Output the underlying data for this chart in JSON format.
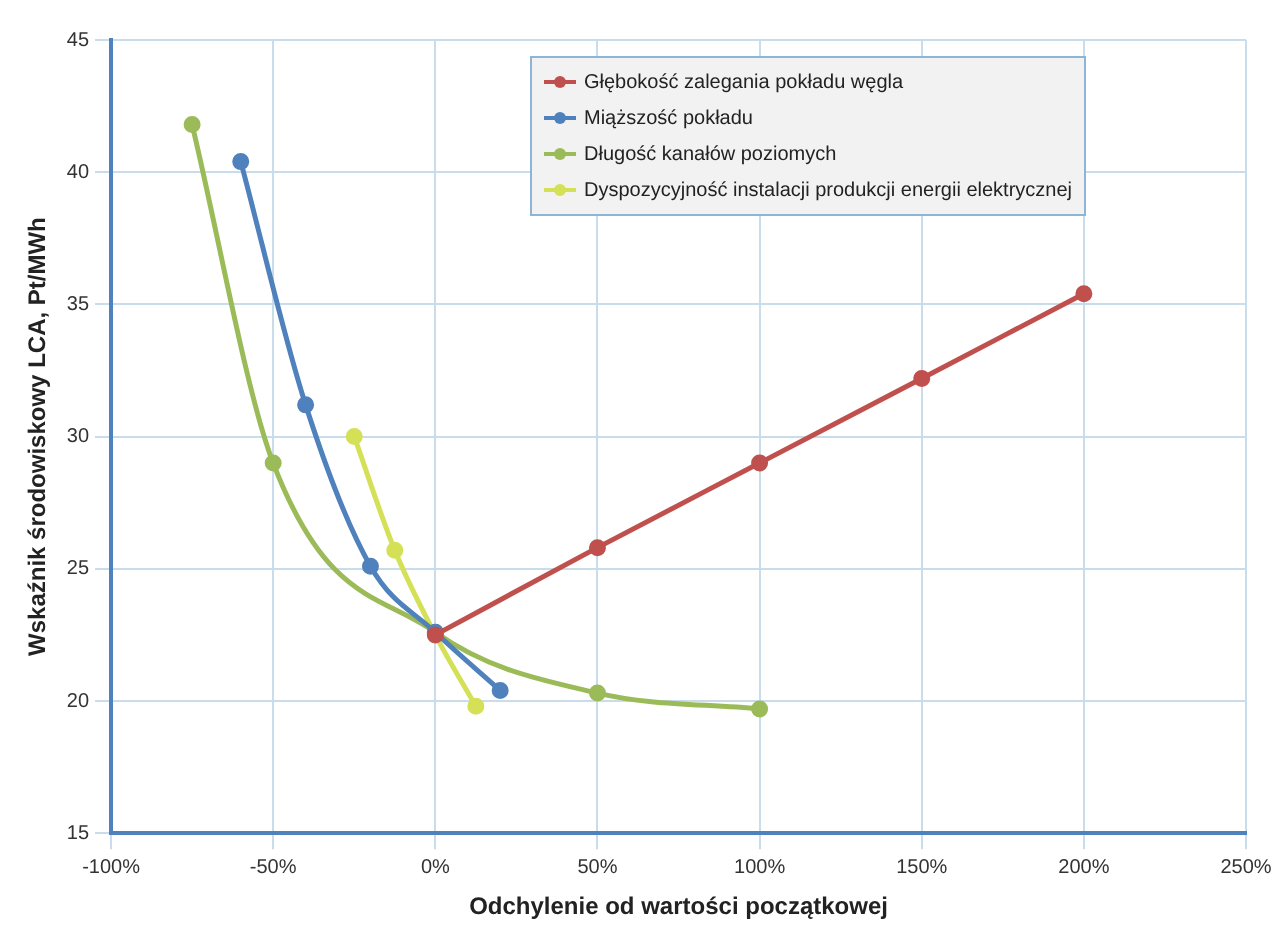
{
  "chart_data": {
    "type": "line",
    "xlabel": "Odchylenie od wartości początkowej",
    "ylabel": "Wskaźnik środowiskowy LCA, Pt/MWh",
    "xlim": [
      -100,
      250
    ],
    "xticks": [
      {
        "value": -100,
        "label": "-100%"
      },
      {
        "value": -50,
        "label": "-50%"
      },
      {
        "value": 0,
        "label": "0%"
      },
      {
        "value": 50,
        "label": "50%"
      },
      {
        "value": 100,
        "label": "100%"
      },
      {
        "value": 150,
        "label": "150%"
      },
      {
        "value": 200,
        "label": "200%"
      },
      {
        "value": 250,
        "label": "250%"
      }
    ],
    "ylim": [
      15,
      45
    ],
    "yticks": [
      15,
      20,
      25,
      30,
      35,
      40,
      45
    ],
    "grid": true,
    "legend": "top right",
    "marker": "circle",
    "line_style": "solid",
    "series": [
      {
        "name": "Głębokość zalegania pokładu węgla",
        "color": "#c0504d",
        "x": [
          0,
          50,
          100,
          150,
          200
        ],
        "values": [
          22.5,
          25.8,
          29,
          32.2,
          35.4
        ]
      },
      {
        "name": "Miąższość pokładu",
        "color": "#4f81bd",
        "x": [
          -60,
          -40,
          -20,
          0,
          20
        ],
        "values": [
          40.4,
          31.2,
          25.1,
          22.6,
          20.4
        ]
      },
      {
        "name": "Długość kanałów poziomych",
        "color": "#9bbb59",
        "x": [
          -75,
          -50,
          0,
          50,
          100
        ],
        "values": [
          41.8,
          29,
          22.6,
          20.3,
          19.7
        ]
      },
      {
        "name": "Dyspozycyjność instalacji produkcji energii elektrycznej",
        "color": "#d4e157",
        "x": [
          -25,
          -12.5,
          0,
          12.5
        ],
        "values": [
          30,
          25.7,
          22.5,
          19.8
        ]
      }
    ]
  }
}
